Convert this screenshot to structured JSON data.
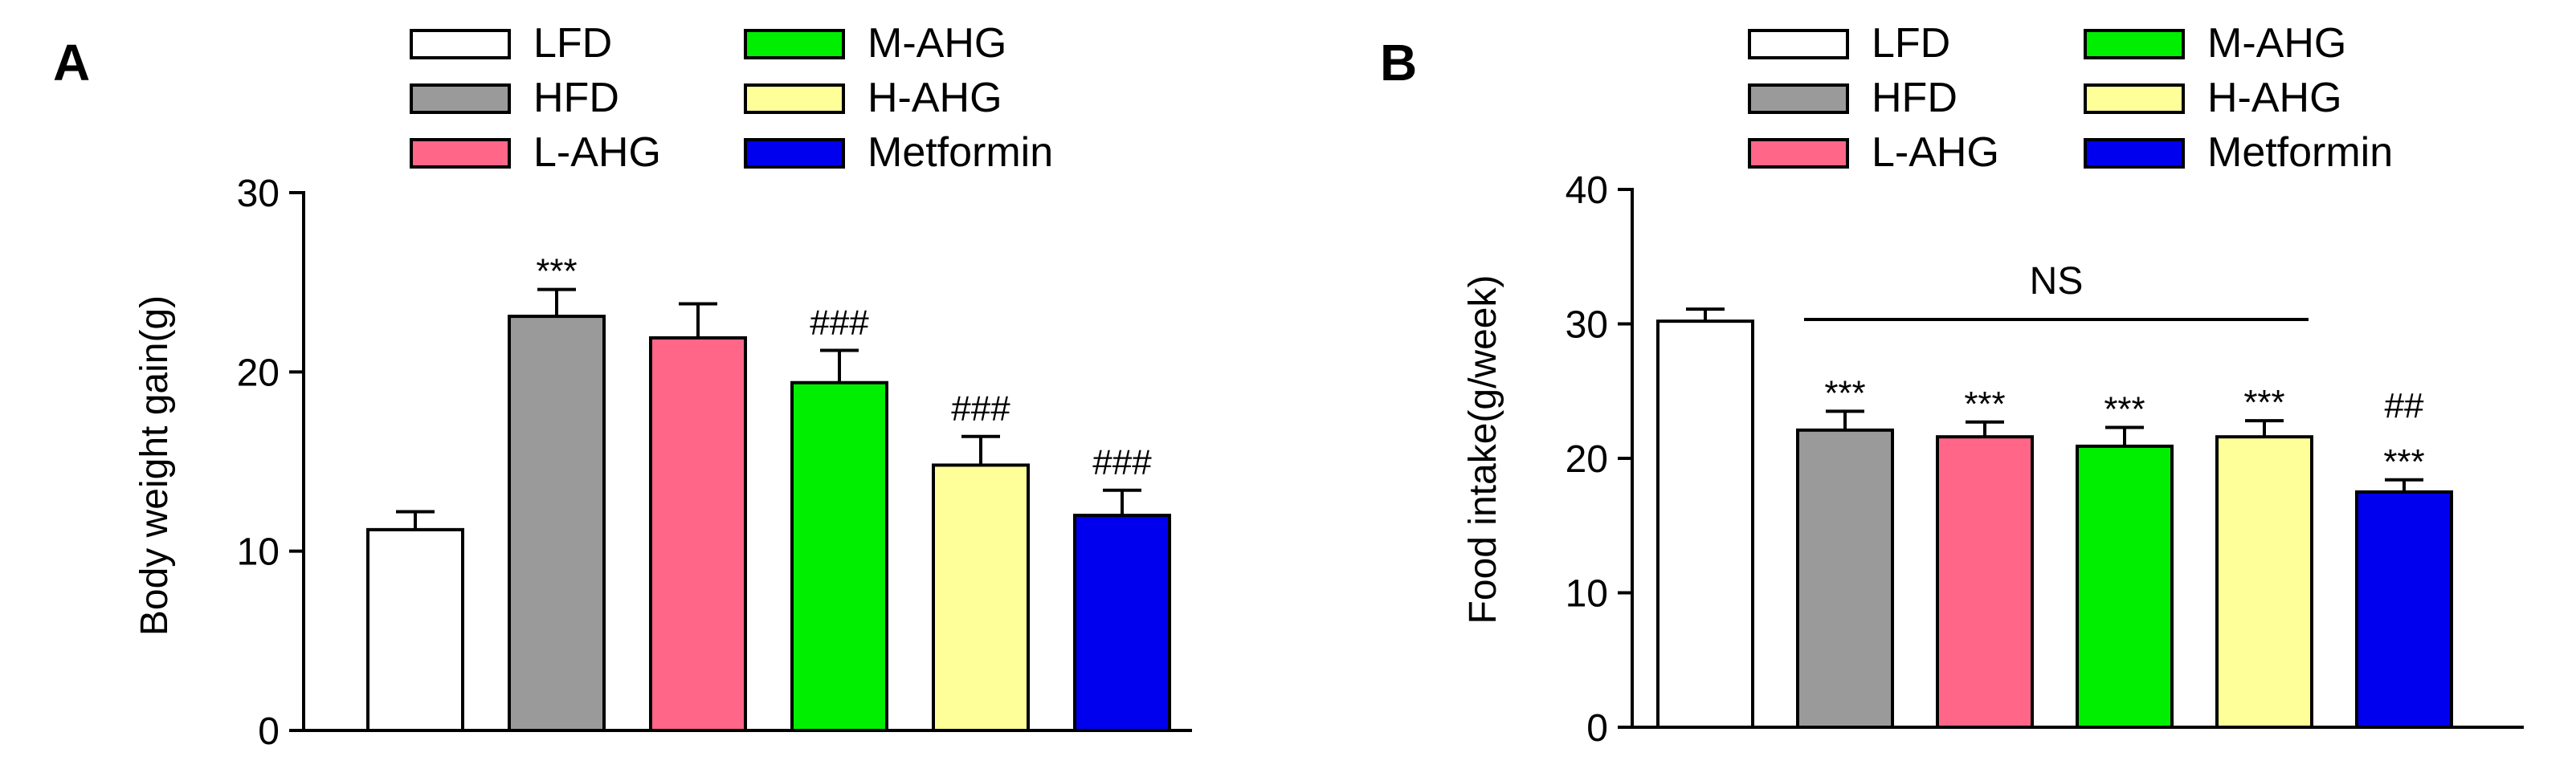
{
  "figure": {
    "panels": [
      "A",
      "B"
    ]
  },
  "legend": {
    "items": [
      {
        "label": "LFD",
        "color": "#ffffff"
      },
      {
        "label": "M-AHG",
        "color": "#00ee00"
      },
      {
        "label": "HFD",
        "color": "#9a9a9a"
      },
      {
        "label": "H-AHG",
        "color": "#ffff99"
      },
      {
        "label": "L-AHG",
        "color": "#ff6688"
      },
      {
        "label": "Metformin",
        "color": "#0000ee"
      }
    ]
  },
  "chart_data": [
    {
      "panel": "A",
      "type": "bar",
      "ylabel": "Body weight gain(g)",
      "xlabel": "",
      "ylim": [
        0,
        30
      ],
      "yticks": [
        0,
        10,
        20,
        30
      ],
      "categories": [
        "LFD",
        "HFD",
        "L-AHG",
        "M-AHG",
        "H-AHG",
        "Metformin"
      ],
      "colors": [
        "#ffffff",
        "#9a9a9a",
        "#ff6688",
        "#00ee00",
        "#ffff99",
        "#0000ee"
      ],
      "values": [
        11.2,
        23.1,
        21.9,
        19.4,
        14.8,
        12.0
      ],
      "errors": [
        1.0,
        1.5,
        1.9,
        1.8,
        1.6,
        1.4
      ],
      "annotations": [
        [],
        [
          "***"
        ],
        [],
        [
          "###"
        ],
        [
          "###"
        ],
        [
          "###"
        ]
      ]
    },
    {
      "panel": "B",
      "type": "bar",
      "ylabel": "Food intake(g/week)",
      "xlabel": "",
      "ylim": [
        0,
        40
      ],
      "yticks": [
        0,
        10,
        20,
        30,
        40
      ],
      "categories": [
        "LFD",
        "HFD",
        "L-AHG",
        "M-AHG",
        "H-AHG",
        "Metformin"
      ],
      "colors": [
        "#ffffff",
        "#9a9a9a",
        "#ff6688",
        "#00ee00",
        "#ffff99",
        "#0000ee"
      ],
      "values": [
        30.2,
        22.1,
        21.6,
        20.9,
        21.6,
        17.5
      ],
      "errors": [
        0.9,
        1.4,
        1.1,
        1.4,
        1.2,
        0.9
      ],
      "annotations": [
        [],
        [
          "***"
        ],
        [
          "***"
        ],
        [
          "***"
        ],
        [
          "***"
        ],
        [
          "##",
          "***"
        ]
      ],
      "bracket": {
        "label": "NS",
        "from": 1,
        "to": 4
      }
    }
  ]
}
